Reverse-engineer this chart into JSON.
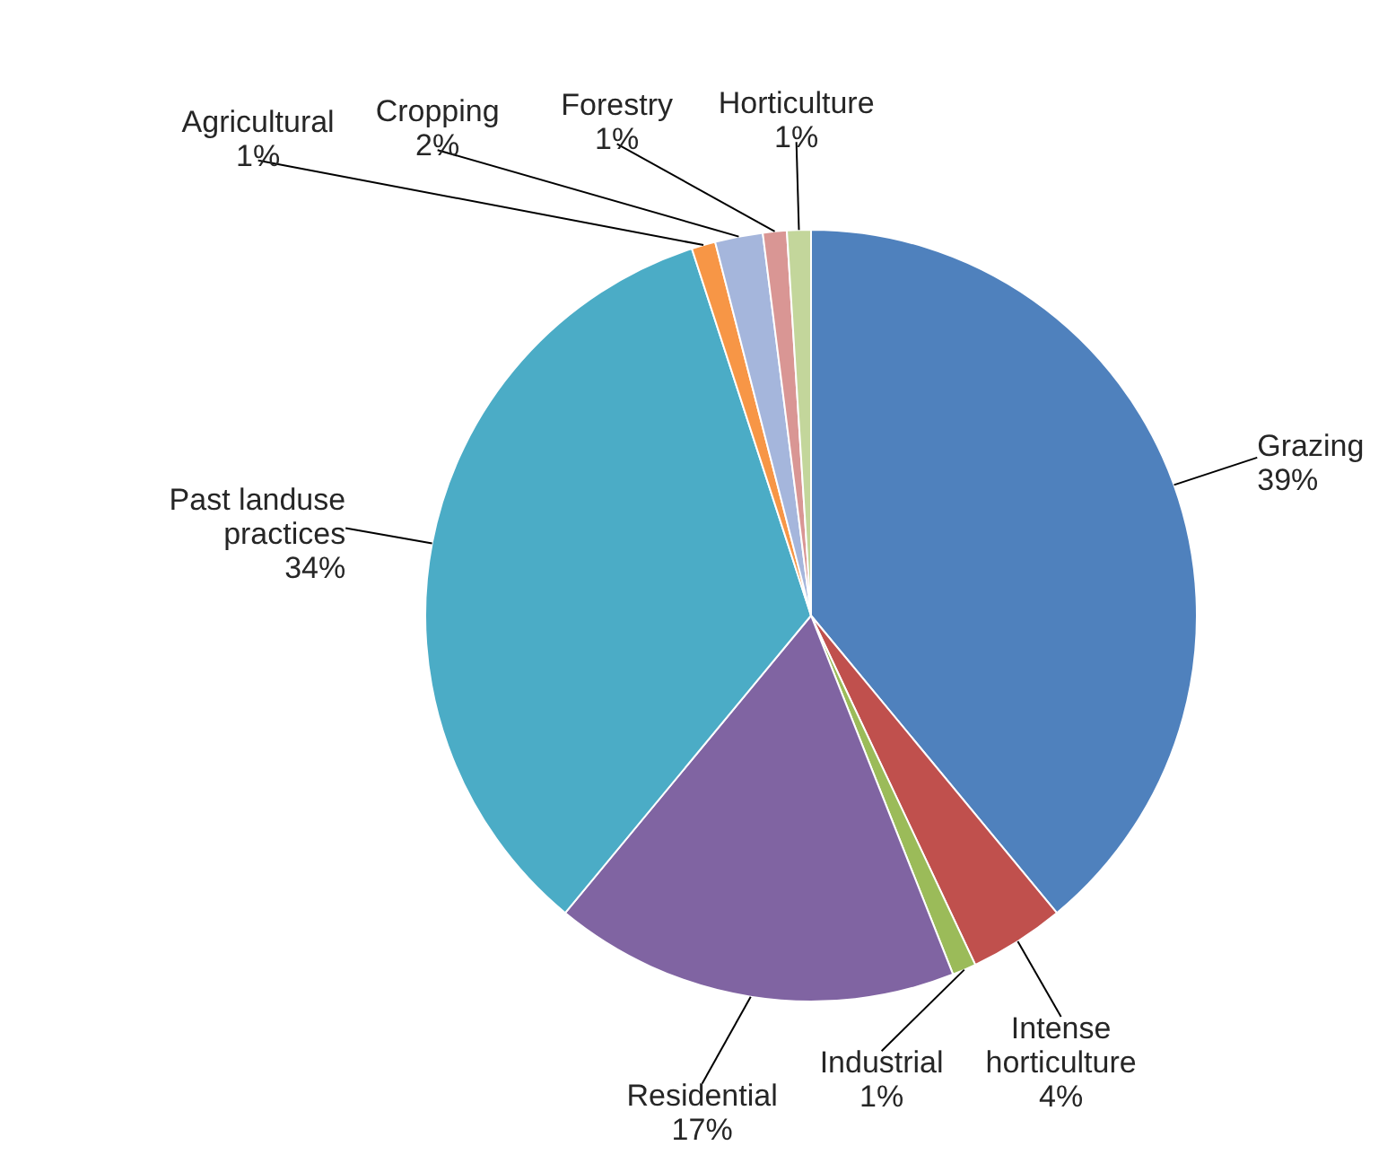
{
  "chart_data": {
    "type": "pie",
    "categories": [
      "Grazing",
      "Intense horticulture",
      "Industrial",
      "Residential",
      "Past landuse practices",
      "Agricultural",
      "Cropping",
      "Forestry",
      "Horticulture"
    ],
    "values": [
      39,
      4,
      1,
      17,
      34,
      1,
      2,
      1,
      1
    ],
    "value_labels": [
      "39%",
      "4%",
      "1%",
      "17%",
      "34%",
      "1%",
      "2%",
      "1%",
      "1%"
    ],
    "colors": [
      "#4f81bd",
      "#c0504d",
      "#9bbb59",
      "#8064a2",
      "#4bacc6",
      "#f79646",
      "#a5b6dc",
      "#d99694",
      "#c3d69b"
    ]
  }
}
